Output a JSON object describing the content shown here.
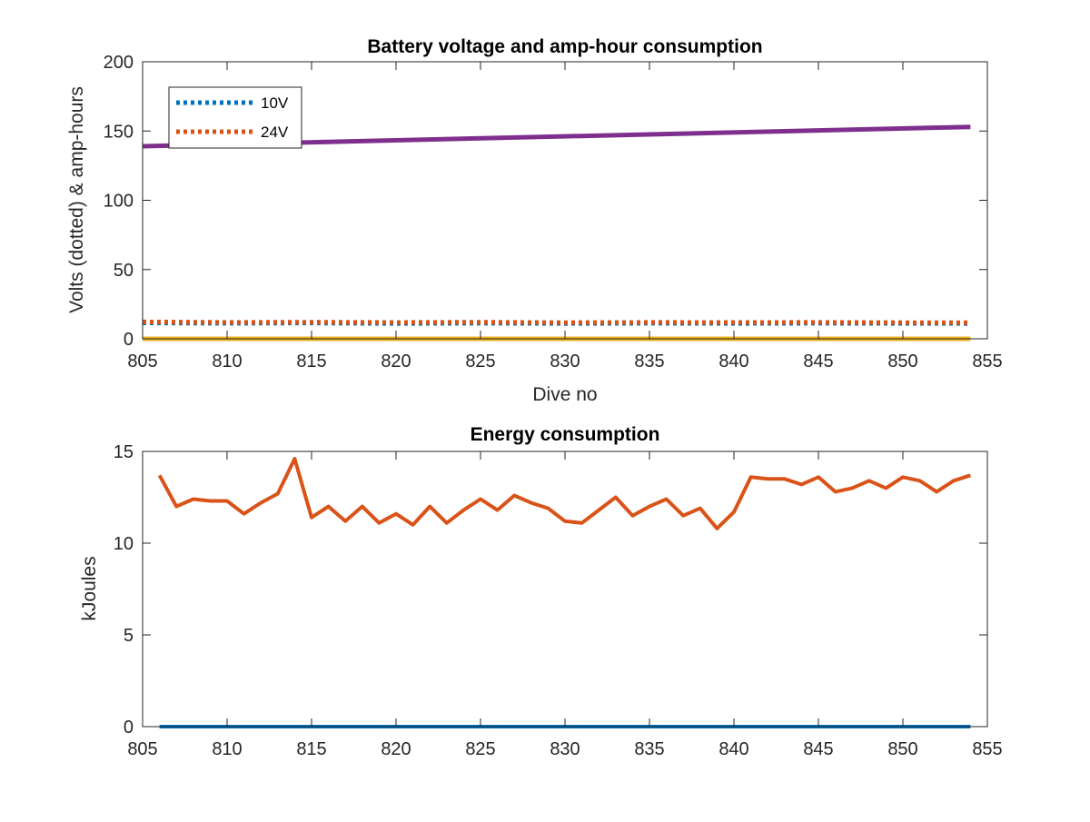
{
  "chart_data": [
    {
      "type": "line",
      "title": "Battery voltage and amp-hour consumption",
      "xlabel": "Dive no",
      "ylabel": "Volts (dotted) & amp-hours",
      "xlim": [
        805,
        855
      ],
      "ylim": [
        0,
        200
      ],
      "xticks": [
        805,
        810,
        815,
        820,
        825,
        830,
        835,
        840,
        845,
        850,
        855
      ],
      "yticks": [
        0,
        50,
        100,
        150,
        200
      ],
      "grid": false,
      "legend_position": "top-left",
      "series": [
        {
          "name": "10V",
          "style": "dotted",
          "color": "#0072BD",
          "x": [
            805,
            810,
            815,
            820,
            825,
            830,
            835,
            840,
            845,
            850,
            854
          ],
          "y": [
            11.5,
            11.2,
            11.4,
            11.0,
            11.3,
            11.0,
            11.2,
            11.1,
            11.2,
            11.1,
            11.0
          ]
        },
        {
          "name": "24V",
          "style": "dotted",
          "color": "#D95319",
          "x": [
            805,
            810,
            815,
            820,
            825,
            830,
            835,
            840,
            845,
            850,
            854
          ],
          "y": [
            12.2,
            11.9,
            12.0,
            11.8,
            12.0,
            11.7,
            11.9,
            11.8,
            11.9,
            11.7,
            11.6
          ]
        },
        {
          "style": "solid",
          "color": "#EDB120",
          "x": [
            805,
            854
          ],
          "y": [
            0,
            0
          ]
        },
        {
          "style": "solid",
          "color": "#7E2F8E",
          "x": [
            805,
            854
          ],
          "y": [
            139,
            153
          ]
        }
      ]
    },
    {
      "type": "line",
      "title": "Energy consumption",
      "xlabel": "",
      "ylabel": "kJoules",
      "xlim": [
        805,
        855
      ],
      "ylim": [
        0,
        15
      ],
      "xticks": [
        805,
        810,
        815,
        820,
        825,
        830,
        835,
        840,
        845,
        850,
        855
      ],
      "yticks": [
        0,
        5,
        10,
        15
      ],
      "grid": false,
      "series": [
        {
          "style": "solid",
          "color": "#D95319",
          "x": [
            806,
            807,
            808,
            809,
            810,
            811,
            812,
            813,
            814,
            815,
            816,
            817,
            818,
            819,
            820,
            821,
            822,
            823,
            824,
            825,
            826,
            827,
            828,
            829,
            830,
            831,
            832,
            833,
            834,
            835,
            836,
            837,
            838,
            839,
            840,
            841,
            842,
            843,
            844,
            845,
            846,
            847,
            848,
            849,
            850,
            851,
            852,
            853,
            854
          ],
          "y": [
            13.7,
            12.0,
            12.4,
            12.3,
            12.3,
            11.6,
            12.2,
            12.7,
            14.6,
            11.4,
            12.0,
            11.2,
            12.0,
            11.1,
            11.6,
            11.0,
            12.0,
            11.1,
            11.8,
            12.4,
            11.8,
            12.6,
            12.2,
            11.9,
            11.2,
            11.1,
            11.8,
            12.5,
            11.5,
            12.0,
            12.4,
            11.5,
            11.9,
            10.8,
            11.7,
            13.6,
            13.5,
            13.5,
            13.2,
            13.6,
            12.8,
            13.0,
            13.4,
            13.0,
            13.6,
            13.4,
            12.8,
            13.4,
            13.7
          ]
        },
        {
          "style": "solid",
          "color": "#0072BD",
          "x": [
            806,
            854
          ],
          "y": [
            0,
            0
          ]
        }
      ]
    }
  ]
}
